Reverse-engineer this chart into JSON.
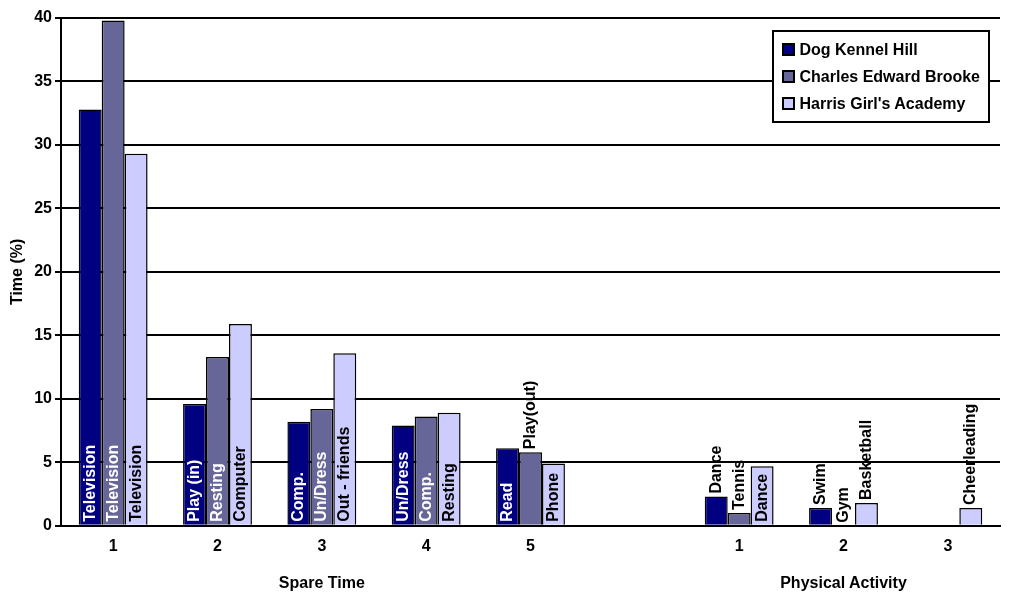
{
  "chart_data": {
    "type": "bar",
    "ylabel": "Time (%)",
    "xlabel": "Spare Time",
    "annotations": [
      "Physical Activity"
    ],
    "categories": [
      "1",
      "2",
      "3",
      "4",
      "5",
      null,
      "1",
      "2",
      "3"
    ],
    "series": [
      {
        "name": "Dog Kennel Hill",
        "color": "#000080",
        "values": [
          32.8,
          9.6,
          8.2,
          7.9,
          6.1,
          0,
          2.3,
          1.4,
          0
        ],
        "value_labels": [
          "Television",
          "Play (in)",
          "Comp.",
          "Un/Dress",
          "Read",
          null,
          "Dance",
          "Swim",
          null
        ]
      },
      {
        "name": "Charles Edward Brooke",
        "color": "#666699",
        "values": [
          39.8,
          13.3,
          9.2,
          8.6,
          5.8,
          0,
          1.0,
          0,
          0
        ],
        "value_labels": [
          "Television",
          "Resting",
          "Un/Dress",
          "Comp.",
          "Play(out)",
          null,
          "Tennis",
          "Gym",
          null
        ]
      },
      {
        "name": "Harris Girl's Academy",
        "color": "#ccccff",
        "values": [
          29.3,
          15.9,
          13.6,
          8.9,
          4.9,
          0,
          4.7,
          1.8,
          1.4
        ],
        "value_labels": [
          "Television",
          "Computer",
          "Out - friends",
          "Resting",
          "Phone",
          null,
          "Dance",
          "Basketball",
          "Cheerleading"
        ]
      }
    ],
    "ylim": [
      0,
      40
    ],
    "yticks": [
      0,
      5,
      10,
      15,
      20,
      25,
      30,
      35,
      40
    ],
    "grid": "y",
    "legend": "top right"
  }
}
